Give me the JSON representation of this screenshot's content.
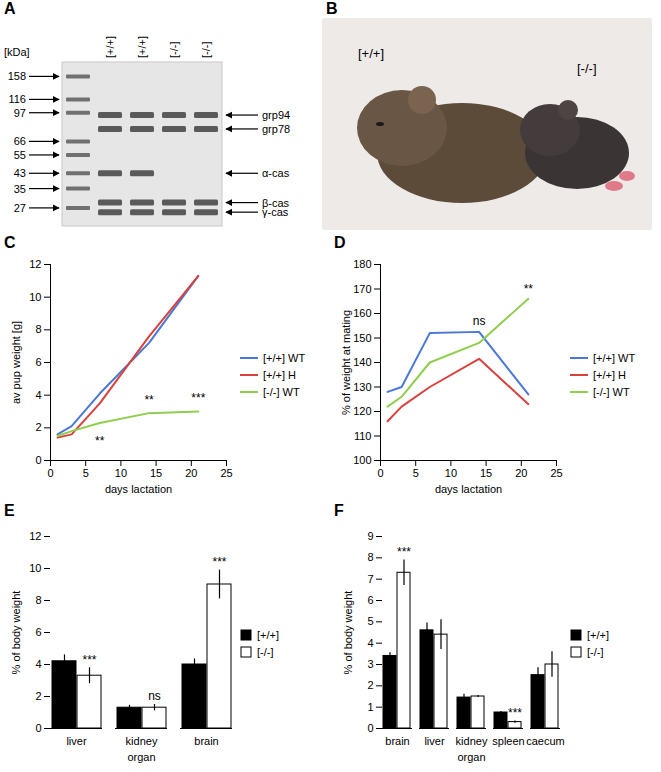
{
  "gel": {
    "panel": "A",
    "unit_label": "[kDa]",
    "ladder": [
      158,
      116,
      97,
      66,
      55,
      43,
      35,
      27
    ],
    "lanes": [
      "[+/+]",
      "[+/+]",
      "[-/-]",
      "[-/-]"
    ],
    "bands": [
      {
        "label": "grp94",
        "kda": 94,
        "lanes": [
          0,
          1,
          2,
          3
        ]
      },
      {
        "label": "grp78",
        "kda": 78,
        "lanes": [
          0,
          1,
          2,
          3
        ]
      },
      {
        "label": "α-cas",
        "kda": 43,
        "lanes": [
          0,
          1
        ]
      },
      {
        "label": "β-cas",
        "kda": 29,
        "lanes": [
          0,
          1,
          2,
          3
        ]
      },
      {
        "label": "γ-cas",
        "kda": 25.5,
        "lanes": [
          0,
          1,
          2,
          3
        ]
      }
    ]
  },
  "photo": {
    "panel": "B",
    "labels": [
      "[+/+]",
      "[-/-]"
    ]
  },
  "chart_data": [
    {
      "panel": "C",
      "type": "line",
      "x_label": "days lactation",
      "y_label": "av pup weight [g]",
      "x": [
        1,
        3,
        7,
        14,
        21
      ],
      "xlim": [
        0,
        25
      ],
      "xticks": [
        0,
        5,
        10,
        15,
        20,
        25
      ],
      "ylim": [
        0,
        12
      ],
      "yticks": [
        0,
        2,
        4,
        6,
        8,
        10,
        12
      ],
      "legend": "right",
      "series": [
        {
          "name": "[+/+] WT",
          "color": "#4a78d6",
          "values": [
            1.6,
            2.1,
            4.1,
            7.2,
            11.3
          ]
        },
        {
          "name": "[+/+] H",
          "color": "#d9423c",
          "values": [
            1.4,
            1.6,
            3.5,
            7.6,
            11.3
          ]
        },
        {
          "name": "[-/-] WT",
          "color": "#8fce4e",
          "values": [
            1.5,
            1.8,
            2.3,
            2.9,
            3.0
          ]
        }
      ],
      "annotations": [
        {
          "text": "**",
          "x": 7,
          "y": 1.2
        },
        {
          "text": "**",
          "x": 14,
          "y": 3.7
        },
        {
          "text": "***",
          "x": 21,
          "y": 3.8
        }
      ]
    },
    {
      "panel": "D",
      "type": "line",
      "x_label": "days lactation",
      "y_label": "% of weight at mating",
      "x": [
        1,
        3,
        7,
        14,
        21
      ],
      "xlim": [
        0,
        25
      ],
      "xticks": [
        0,
        5,
        10,
        15,
        20,
        25
      ],
      "ylim": [
        100,
        180
      ],
      "yticks": [
        100,
        110,
        120,
        130,
        140,
        150,
        160,
        170,
        180
      ],
      "legend": "right",
      "series": [
        {
          "name": "[+/+] WT",
          "color": "#4a78d6",
          "values": [
            128,
            130,
            152,
            152.5,
            127
          ]
        },
        {
          "name": "[+/+] H",
          "color": "#d9423c",
          "values": [
            116,
            122,
            130,
            141.5,
            123
          ]
        },
        {
          "name": "[-/-] WT",
          "color": "#8fce4e",
          "values": [
            122,
            126,
            140,
            148,
            166
          ]
        }
      ],
      "annotations": [
        {
          "text": "ns",
          "x": 14,
          "y": 157
        },
        {
          "text": "**",
          "x": 21,
          "y": 170
        }
      ]
    },
    {
      "panel": "E",
      "type": "bar",
      "x_label": "organ",
      "y_label": "% of body weight",
      "categories": [
        "liver",
        "kidney",
        "brain"
      ],
      "ylim": [
        0,
        12
      ],
      "yticks": [
        0,
        2,
        4,
        6,
        8,
        10,
        12
      ],
      "legend": "right",
      "series": [
        {
          "name": "[+/+]",
          "color": "#000000",
          "values": [
            4.2,
            1.3,
            4.0
          ],
          "errors": [
            0.4,
            0.15,
            0.35
          ]
        },
        {
          "name": "[-/-]",
          "color": "#ffffff",
          "values": [
            3.3,
            1.3,
            9.0
          ],
          "errors": [
            0.5,
            0.2,
            0.9
          ]
        }
      ],
      "annotations": [
        {
          "text": "***",
          "category": "liver",
          "series": "[-/-]"
        },
        {
          "text": "ns",
          "category": "kidney",
          "series": "[-/-]"
        },
        {
          "text": "***",
          "category": "brain",
          "series": "[-/-]"
        }
      ]
    },
    {
      "panel": "F",
      "type": "bar",
      "x_label": "organ",
      "y_label": "% of body weight",
      "categories": [
        "brain",
        "liver",
        "kidney",
        "spleen",
        "caecum"
      ],
      "ylim": [
        0,
        9
      ],
      "yticks": [
        0,
        1,
        2,
        3,
        4,
        5,
        6,
        7,
        8,
        9
      ],
      "legend": "right",
      "series": [
        {
          "name": "[+/+]",
          "color": "#000000",
          "values": [
            3.4,
            4.6,
            1.45,
            0.75,
            2.5
          ],
          "errors": [
            0.15,
            0.35,
            0.15,
            0.05,
            0.35
          ]
        },
        {
          "name": "[-/-]",
          "color": "#ffffff",
          "values": [
            7.3,
            4.4,
            1.5,
            0.3,
            3.0
          ],
          "errors": [
            0.6,
            0.7,
            0.05,
            0.05,
            0.6
          ]
        }
      ],
      "annotations": [
        {
          "text": "***",
          "category": "brain",
          "series": "[-/-]"
        },
        {
          "text": "***",
          "category": "spleen",
          "series": "[-/-]"
        }
      ]
    }
  ]
}
